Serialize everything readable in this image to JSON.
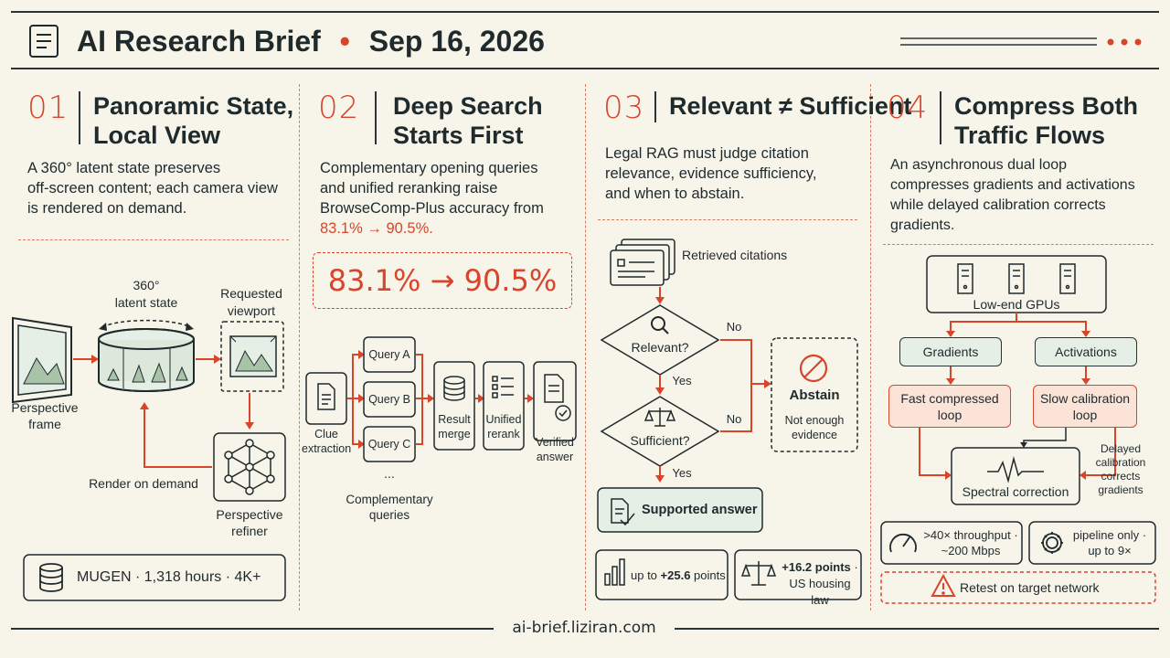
{
  "header": {
    "title": "AI Research Brief",
    "bullet": "•",
    "date": "Sep 16, 2026"
  },
  "panels": [
    {
      "num": "01",
      "title_lines": [
        "Panoramic State,",
        "Local View"
      ],
      "body_lines": [
        "A 360° latent state preserves",
        "off-screen content; each camera view",
        "is rendered on demand."
      ],
      "diagram": {
        "latent_label": [
          "360°",
          "latent state"
        ],
        "viewport_label": [
          "Requested",
          "viewport"
        ],
        "frame_label": [
          "Perspective",
          "frame"
        ],
        "render_label": "Render on demand",
        "refiner_label": [
          "Perspective",
          "refiner"
        ]
      },
      "footer": "MUGEN · 1,318 hours · 4K+"
    },
    {
      "num": "02",
      "title_lines": [
        "Deep Search",
        "Starts First"
      ],
      "body_lines": [
        "Complementary opening queries",
        "and unified reranking raise",
        "BrowseComp-Plus accuracy from"
      ],
      "body_highlight": "83.1% → 90.5%.",
      "big_stat": "83.1% → 90.5%",
      "diagram": {
        "clue_label": [
          "Clue",
          "extraction"
        ],
        "queries": [
          "Query A",
          "Query B",
          "Query C"
        ],
        "ellipsis": "...",
        "complementary_label": [
          "Complementary",
          "queries"
        ],
        "merge_label": [
          "Result",
          "merge"
        ],
        "rerank_label": [
          "Unified",
          "rerank"
        ],
        "verified_label": [
          "Verified",
          "answer"
        ]
      }
    },
    {
      "num": "03",
      "title_lines": [
        "Relevant ≠ Sufficient"
      ],
      "body_lines": [
        "Legal RAG must judge citation",
        "relevance, evidence sufficiency,",
        "and when to abstain."
      ],
      "diagram": {
        "retrieved_label": "Retrieved citations",
        "relevant_label": "Relevant?",
        "sufficient_label": "Sufficient?",
        "yes1": "Yes",
        "yes2": "Yes",
        "no1": "No",
        "no2": "No",
        "abstain_title": "Abstain",
        "abstain_sub": [
          "Not enough",
          "evidence"
        ],
        "supported_label": "Supported answer"
      },
      "stats": [
        {
          "prefix": "up to ",
          "value": "+25.6",
          "suffix": " points"
        },
        {
          "value": "+16.2 points",
          "suffix": " ·",
          "line2": "US housing law"
        }
      ]
    },
    {
      "num": "04",
      "title_lines": [
        "Compress Both",
        "Traffic Flows"
      ],
      "body_lines": [
        "An asynchronous dual loop",
        "compresses gradients and activations",
        "while delayed calibration corrects",
        "gradients."
      ],
      "diagram": {
        "gpus_label": "Low-end GPUs",
        "gradients_label": "Gradients",
        "activations_label": "Activations",
        "fast_label": [
          "Fast compressed",
          "loop"
        ],
        "slow_label": [
          "Slow calibration",
          "loop"
        ],
        "delayed_label": [
          "Delayed",
          "calibration",
          "corrects",
          "gradients"
        ],
        "spectral_label": "Spectral correction"
      },
      "stats": [
        {
          "line1": ">40× throughput ·",
          "line2": "~200 Mbps"
        },
        {
          "line1": "pipeline only ·",
          "line2": "up to 9×"
        }
      ],
      "warning": "Retest on target network"
    }
  ],
  "footer": {
    "url": "ai-brief.liziran.com"
  },
  "colors": {
    "accent": "#d8452b",
    "ink": "#1f2a2c",
    "background": "#f7f4ea",
    "green_fill": "#e6efe5",
    "orange_fill": "#fbe3d8"
  }
}
